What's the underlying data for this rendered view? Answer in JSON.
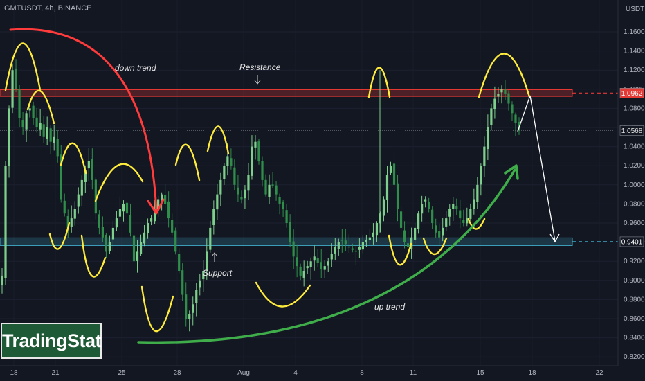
{
  "symbol_text": "GMTUSDT, 4h, BINANCE",
  "logo_text": "TradingStat",
  "colors": {
    "background": "#131722",
    "up_candle": "#7fcf8c",
    "down_candle": "#2f8f4a",
    "resistance": "#e53935",
    "support": "#3fa7c4",
    "yellow_marks": "#ffeb3b",
    "down_arrow": "#ff3b3b",
    "up_arrow": "#3fae4a",
    "projection": "#ffffff"
  },
  "chart_data": {
    "type": "candlestick",
    "unit_label": "USDT",
    "ylim": [
      0.81,
      1.175
    ],
    "y_ticks": [
      "1.1600",
      "1.1400",
      "1.1200",
      "1.1000",
      "1.0800",
      "1.0600",
      "1.0400",
      "1.0200",
      "1.0000",
      "0.9800",
      "0.9600",
      "0.9400",
      "0.9200",
      "0.9000",
      "0.8800",
      "0.8600",
      "0.8400",
      "0.8200"
    ],
    "x_ticks": [
      "18",
      "21",
      "25",
      "28",
      "Aug",
      "4",
      "8",
      "11",
      "15",
      "18",
      "22"
    ],
    "resistance_zone": [
      1.0925,
      1.0995
    ],
    "support_zone": [
      0.9365,
      0.9445
    ],
    "price_tags": {
      "resistance": "1.0962",
      "current": "1.0568",
      "support": "0.9401"
    },
    "annotations": {
      "down": "down trend",
      "resistance": "Resistance",
      "support": "Support",
      "up": "up trend"
    },
    "approx_closes": [
      0.905,
      1.02,
      1.08,
      1.12,
      1.1,
      1.07,
      1.06,
      1.075,
      1.08,
      1.07,
      1.06,
      1.065,
      1.05,
      1.06,
      1.045,
      1.05,
      1.03,
      0.985,
      0.97,
      0.955,
      0.965,
      0.975,
      0.99,
      1.005,
      1.015,
      1.025,
      1.005,
      0.97,
      0.955,
      0.945,
      0.93,
      0.94,
      0.955,
      0.965,
      0.975,
      0.98,
      0.97,
      0.95,
      0.92,
      0.93,
      0.94,
      0.95,
      0.96,
      0.965,
      0.975,
      0.985,
      0.99,
      0.98,
      0.965,
      0.95,
      0.93,
      0.91,
      0.885,
      0.86,
      0.865,
      0.875,
      0.89,
      0.9,
      0.91,
      0.93,
      0.955,
      0.975,
      0.99,
      1.005,
      1.02,
      1.03,
      1.02,
      1.0,
      0.99,
      0.985,
      0.995,
      1.01,
      1.04,
      1.045,
      1.025,
      1.005,
      0.99,
      1.0,
      1.0,
      0.99,
      0.98,
      0.975,
      0.96,
      0.94,
      0.925,
      0.915,
      0.905,
      0.91,
      0.915,
      0.92,
      0.925,
      0.918,
      0.912,
      0.915,
      0.92,
      0.928,
      0.935,
      0.94,
      0.942,
      0.938,
      0.935,
      0.932,
      0.93,
      0.935,
      0.94,
      0.942,
      0.945,
      0.95,
      0.96,
      0.97,
      0.985,
      1.01,
      1.02,
      1.0,
      0.975,
      0.955,
      0.94,
      0.935,
      0.945,
      0.955,
      0.97,
      0.98,
      0.985,
      0.975,
      0.96,
      0.95,
      0.945,
      0.955,
      0.965,
      0.975,
      0.98,
      0.975,
      0.965,
      0.96,
      0.965,
      0.975,
      0.985,
      1.0,
      1.02,
      1.04,
      1.06,
      1.08,
      1.09,
      1.095,
      1.1,
      1.095,
      1.085,
      1.075,
      1.065,
      1.057
    ]
  }
}
